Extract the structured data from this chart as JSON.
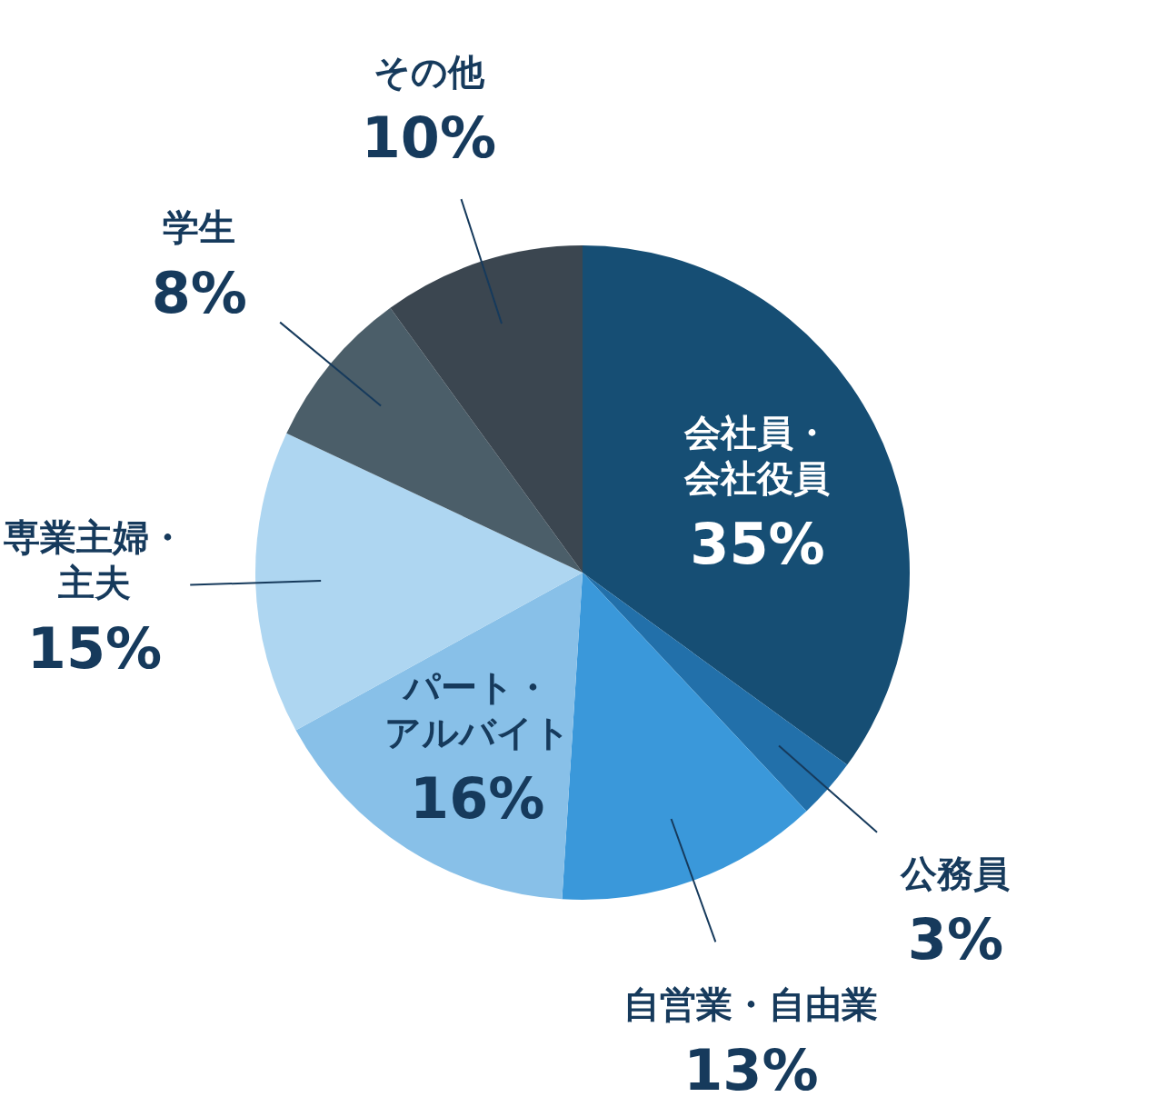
{
  "chart_data": {
    "type": "pie",
    "categories": [
      "会社員・会社役員",
      "公務員",
      "自営業・自由業",
      "パート・アルバイト",
      "専業主婦・主夫",
      "学生",
      "その他"
    ],
    "values": [
      35,
      3,
      13,
      16,
      15,
      8,
      10
    ],
    "value_labels": [
      "35%",
      "3%",
      "13%",
      "16%",
      "15%",
      "8%",
      "10%"
    ],
    "colors": [
      "#164e74",
      "#2270aa",
      "#3a98da",
      "#88c0e8",
      "#aed6f1",
      "#4b5e69",
      "#3b4650"
    ]
  }
}
